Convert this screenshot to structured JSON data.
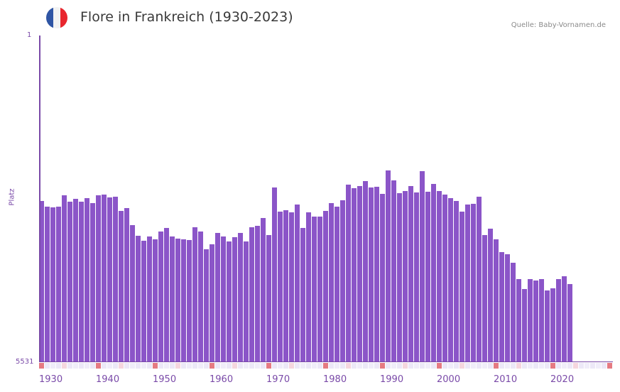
{
  "header": {
    "title": "Flore in Frankreich (1930-2023)",
    "source": "Quelle: Baby-Vornamen.de",
    "flag_colors": [
      "#2f55a4",
      "#f2f2f2",
      "#e8262e"
    ]
  },
  "colors": {
    "bar": "#8b55c8",
    "axis": "#7a4aa8",
    "decade_marker": "#e57a82",
    "half_decade_marker": "#f5d6de",
    "future_bg": "#e2def0"
  },
  "chart_data": {
    "type": "bar",
    "title": "Flore in Frankreich (1930-2023)",
    "xlabel": "",
    "ylabel": "Platz",
    "y_axis_inverted": true,
    "ylim": [
      1,
      5531
    ],
    "ytick_labels": [
      "1",
      "5531"
    ],
    "xtick_labels": [
      "1930",
      "1940",
      "1950",
      "1960",
      "1970",
      "1980",
      "1990",
      "2000",
      "2010",
      "2020"
    ],
    "x_range": [
      1930,
      2030
    ],
    "grid": true,
    "categories": [
      1930,
      1931,
      1932,
      1933,
      1934,
      1935,
      1936,
      1937,
      1938,
      1939,
      1940,
      1941,
      1942,
      1943,
      1944,
      1945,
      1946,
      1947,
      1948,
      1949,
      1950,
      1951,
      1952,
      1953,
      1954,
      1955,
      1956,
      1957,
      1958,
      1959,
      1960,
      1961,
      1962,
      1963,
      1964,
      1965,
      1966,
      1967,
      1968,
      1969,
      1970,
      1971,
      1972,
      1973,
      1974,
      1975,
      1976,
      1977,
      1978,
      1979,
      1980,
      1981,
      1982,
      1983,
      1984,
      1985,
      1986,
      1987,
      1988,
      1989,
      1990,
      1991,
      1992,
      1993,
      1994,
      1995,
      1996,
      1997,
      1998,
      1999,
      2000,
      2001,
      2002,
      2003,
      2004,
      2005,
      2006,
      2007,
      2008,
      2009,
      2010,
      2011,
      2012,
      2013,
      2014,
      2015,
      2016,
      2017,
      2018,
      2019,
      2020,
      2021,
      2022,
      2023
    ],
    "values": [
      2803,
      2899,
      2911,
      2899,
      2707,
      2815,
      2767,
      2815,
      2755,
      2839,
      2707,
      2695,
      2743,
      2731,
      2971,
      2923,
      3211,
      3392,
      3476,
      3404,
      3452,
      3320,
      3260,
      3404,
      3440,
      3452,
      3464,
      3248,
      3320,
      3621,
      3536,
      3344,
      3404,
      3488,
      3416,
      3344,
      3488,
      3248,
      3224,
      3091,
      3380,
      2574,
      2983,
      2959,
      2995,
      2863,
      3260,
      2995,
      3067,
      3067,
      2971,
      2839,
      2899,
      2791,
      2526,
      2586,
      2550,
      2466,
      2574,
      2562,
      2683,
      2286,
      2454,
      2671,
      2635,
      2550,
      2659,
      2298,
      2647,
      2514,
      2635,
      2695,
      2755,
      2803,
      2983,
      2863,
      2851,
      2731,
      3380,
      3272,
      3452,
      3669,
      3705,
      3849,
      4125,
      4294,
      4125,
      4149,
      4125,
      4318,
      4282,
      4125,
      4077,
      4209
    ]
  }
}
